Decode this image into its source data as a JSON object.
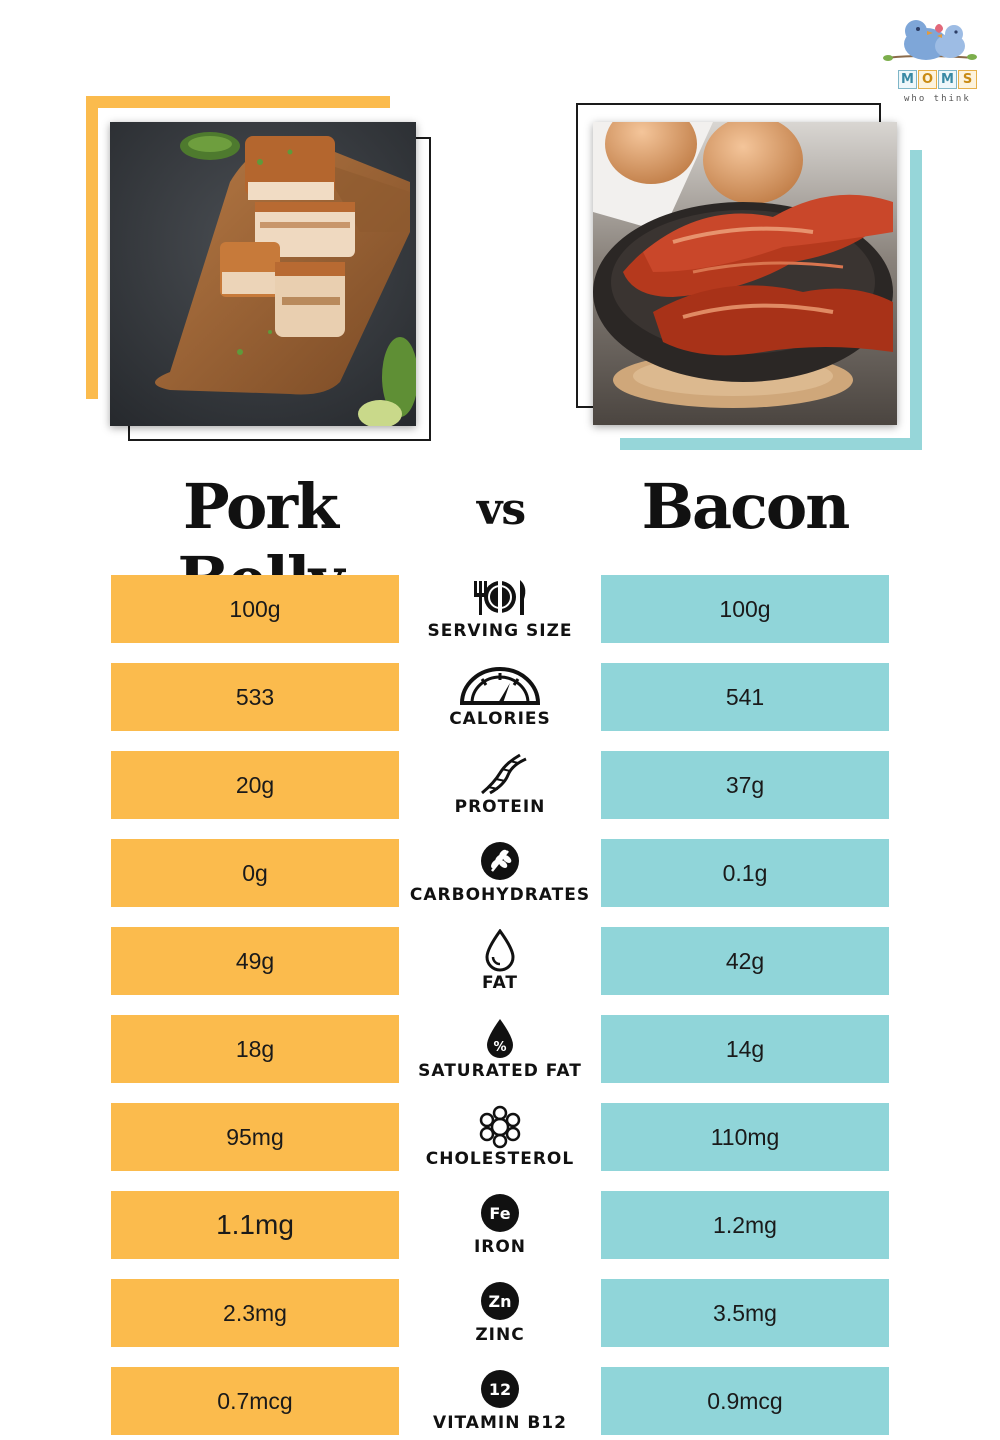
{
  "brand": {
    "logo_letters": [
      "M",
      "O",
      "M",
      "S"
    ],
    "tagline": "who think"
  },
  "colors": {
    "pork_accent": "#fbbb4d",
    "bacon_accent": "#90d5d9",
    "text": "#111111"
  },
  "left_title": "Pork Belly",
  "vs_label": "vs",
  "right_title": "Bacon",
  "rows": [
    {
      "label": "SERVING SIZE",
      "icon": "plate-cutlery-icon",
      "pork": "100g",
      "bacon": "100g"
    },
    {
      "label": "CALORIES",
      "icon": "gauge-icon",
      "pork": "533",
      "bacon": "541"
    },
    {
      "label": "PROTEIN",
      "icon": "dna-helix-icon",
      "pork": "20g",
      "bacon": "37g"
    },
    {
      "label": "CARBOHYDRATES",
      "icon": "wheat-icon",
      "pork": "0g",
      "bacon": "0.1g"
    },
    {
      "label": "FAT",
      "icon": "drop-icon",
      "pork": "49g",
      "bacon": "42g"
    },
    {
      "label": "SATURATED FAT",
      "icon": "percent-drop-icon",
      "pork": "18g",
      "bacon": "14g"
    },
    {
      "label": "CHOLESTEROL",
      "icon": "molecule-icon",
      "pork": "95mg",
      "bacon": "110mg"
    },
    {
      "label": "IRON",
      "icon": "fe-icon",
      "icon_text": "Fe",
      "pork": "1.1mg",
      "bacon": "1.2mg"
    },
    {
      "label": "ZINC",
      "icon": "zn-icon",
      "icon_text": "Zn",
      "pork": "2.3mg",
      "bacon": "3.5mg"
    },
    {
      "label": "VITAMIN B12",
      "icon": "b12-icon",
      "icon_text": "12",
      "pork": "0.7mcg",
      "bacon": "0.9mcg"
    }
  ]
}
